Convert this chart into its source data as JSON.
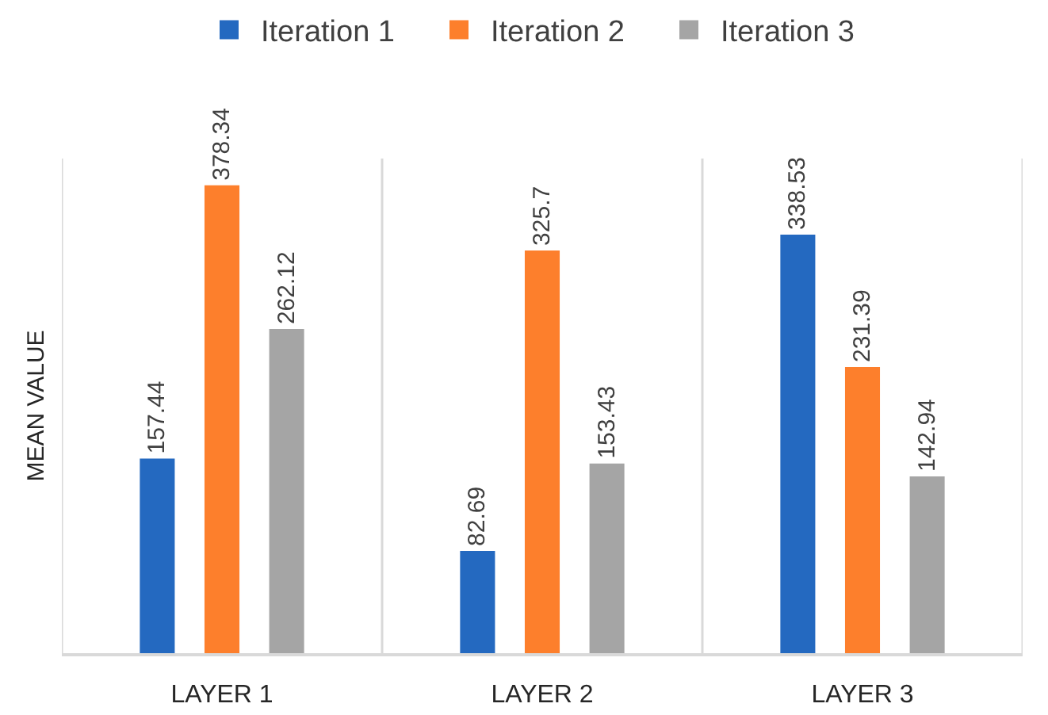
{
  "chart_data": {
    "type": "bar",
    "categories": [
      "LAYER 1",
      "LAYER 2",
      "LAYER 3"
    ],
    "ylabel": "MEAN VALUE",
    "series": [
      {
        "name": "Iteration 1",
        "color": "#2469c0",
        "values": [
          157.44,
          82.69,
          338.53
        ]
      },
      {
        "name": "Iteration 2",
        "color": "#fd7f2c",
        "values": [
          378.34,
          325.7,
          231.39
        ]
      },
      {
        "name": "Iteration 3",
        "color": "#a5a5a5",
        "values": [
          262.12,
          153.43,
          142.94
        ]
      }
    ],
    "ylim": [
      0,
      400
    ],
    "tick_labels": "x",
    "grid": "x",
    "legend": "top",
    "data_labels": true
  }
}
